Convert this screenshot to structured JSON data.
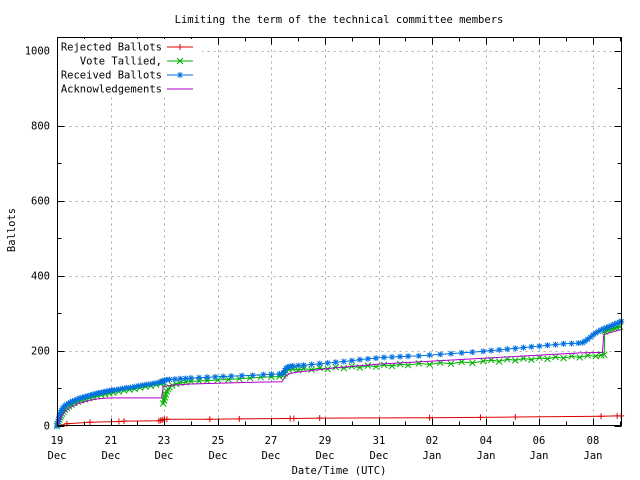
{
  "chart_data": {
    "type": "line",
    "title": "Limiting the term of the technical committee members",
    "xlabel": "Date/Time (UTC)",
    "ylabel": "Ballots",
    "x_unit": "days since 19 Dec 00:00 UTC",
    "xlim": [
      0,
      21.08
    ],
    "ylim": [
      0,
      1037
    ],
    "grid": true,
    "grid_color": "#aaaaaa",
    "frame_color": "#000000",
    "background_color": "#ffffff",
    "legend_position": "top-left-inside",
    "yticks": [
      0,
      200,
      400,
      600,
      800,
      1000
    ],
    "ytick_minor_step": 100,
    "xticks": [
      {
        "t": 0,
        "day": "19",
        "mon": "Dec"
      },
      {
        "t": 2,
        "day": "21",
        "mon": "Dec"
      },
      {
        "t": 4,
        "day": "23",
        "mon": "Dec"
      },
      {
        "t": 6,
        "day": "25",
        "mon": "Dec"
      },
      {
        "t": 8,
        "day": "27",
        "mon": "Dec"
      },
      {
        "t": 10,
        "day": "29",
        "mon": "Dec"
      },
      {
        "t": 12,
        "day": "31",
        "mon": "Dec"
      },
      {
        "t": 14,
        "day": "02",
        "mon": "Jan"
      },
      {
        "t": 16,
        "day": "04",
        "mon": "Jan"
      },
      {
        "t": 18,
        "day": "06",
        "mon": "Jan"
      },
      {
        "t": 20,
        "day": "08",
        "mon": "Jan"
      }
    ],
    "series": [
      {
        "name": "Rejected Ballots",
        "color": "#dd0000",
        "marker": "plus",
        "points": [
          [
            0,
            0
          ],
          [
            0.37,
            6
          ],
          [
            1.23,
            10
          ],
          [
            2.31,
            12
          ],
          [
            2.5,
            13
          ],
          [
            3.8,
            14
          ],
          [
            3.87,
            15
          ],
          [
            3.93,
            16
          ],
          [
            4,
            18
          ],
          [
            4.1,
            18
          ],
          [
            5.7,
            18
          ],
          [
            6.8,
            19
          ],
          [
            8.7,
            20
          ],
          [
            8.84,
            20
          ],
          [
            9.8,
            21
          ],
          [
            13.9,
            22
          ],
          [
            15.8,
            23
          ],
          [
            17.1,
            24
          ],
          [
            20.3,
            26
          ],
          [
            20.9,
            27
          ],
          [
            21.05,
            27
          ]
        ]
      },
      {
        "name": "Vote Tallied,",
        "color": "#00b000",
        "marker": "x",
        "points": [
          [
            0,
            0
          ],
          [
            0.03,
            5
          ],
          [
            0.06,
            11
          ],
          [
            0.09,
            17
          ],
          [
            0.12,
            23
          ],
          [
            0.15,
            28
          ],
          [
            0.19,
            33
          ],
          [
            0.24,
            38
          ],
          [
            0.3,
            43
          ],
          [
            0.37,
            48
          ],
          [
            0.45,
            53
          ],
          [
            0.55,
            57
          ],
          [
            0.65,
            61
          ],
          [
            0.78,
            65
          ],
          [
            0.9,
            68
          ],
          [
            1.05,
            71
          ],
          [
            1.2,
            74
          ],
          [
            1.35,
            77
          ],
          [
            1.5,
            80
          ],
          [
            1.65,
            83
          ],
          [
            1.8,
            85
          ],
          [
            1.95,
            87
          ],
          [
            2.1,
            89
          ],
          [
            2.3,
            92
          ],
          [
            2.5,
            95
          ],
          [
            2.7,
            97
          ],
          [
            2.9,
            99
          ],
          [
            3.1,
            102
          ],
          [
            3.3,
            105
          ],
          [
            3.5,
            107
          ],
          [
            3.7,
            110
          ],
          [
            3.85,
            113
          ],
          [
            3.93,
            116
          ],
          [
            3.95,
            118
          ],
          [
            3.96,
            60
          ],
          [
            4,
            68
          ],
          [
            4.03,
            76
          ],
          [
            4.06,
            84
          ],
          [
            4.1,
            92
          ],
          [
            4.15,
            98
          ],
          [
            4.2,
            103
          ],
          [
            4.3,
            108
          ],
          [
            4.45,
            112
          ],
          [
            4.6,
            115
          ],
          [
            4.8,
            117
          ],
          [
            5,
            119
          ],
          [
            5.3,
            120
          ],
          [
            5.6,
            121
          ],
          [
            6,
            123
          ],
          [
            6.4,
            124
          ],
          [
            6.8,
            126
          ],
          [
            7.2,
            128
          ],
          [
            7.6,
            130
          ],
          [
            8,
            131
          ],
          [
            8.3,
            132
          ],
          [
            8.45,
            134
          ],
          [
            8.5,
            140
          ],
          [
            8.55,
            146
          ],
          [
            8.65,
            150
          ],
          [
            8.8,
            152
          ],
          [
            9,
            149
          ],
          [
            9.2,
            153
          ],
          [
            9.5,
            150
          ],
          [
            9.8,
            155
          ],
          [
            10.1,
            152
          ],
          [
            10.4,
            157
          ],
          [
            10.7,
            154
          ],
          [
            11,
            159
          ],
          [
            11.3,
            156
          ],
          [
            11.6,
            161
          ],
          [
            11.9,
            158
          ],
          [
            12.2,
            163
          ],
          [
            12.5,
            160
          ],
          [
            12.8,
            165
          ],
          [
            13.1,
            162
          ],
          [
            13.5,
            167
          ],
          [
            13.9,
            164
          ],
          [
            14.3,
            169
          ],
          [
            14.7,
            166
          ],
          [
            15.1,
            171
          ],
          [
            15.5,
            168
          ],
          [
            15.9,
            173
          ],
          [
            16.2,
            176
          ],
          [
            16.5,
            172
          ],
          [
            16.8,
            178
          ],
          [
            17.1,
            175
          ],
          [
            17.4,
            180
          ],
          [
            17.7,
            177
          ],
          [
            18,
            182
          ],
          [
            18.3,
            179
          ],
          [
            18.6,
            184
          ],
          [
            18.9,
            181
          ],
          [
            19.2,
            186
          ],
          [
            19.5,
            183
          ],
          [
            19.8,
            188
          ],
          [
            20.1,
            186
          ],
          [
            20.3,
            189
          ],
          [
            20.42,
            190
          ],
          [
            20.43,
            252
          ],
          [
            20.5,
            255
          ],
          [
            20.6,
            257
          ],
          [
            20.7,
            259
          ],
          [
            20.8,
            261
          ],
          [
            20.9,
            263
          ],
          [
            21,
            265
          ]
        ]
      },
      {
        "name": "Received Ballots",
        "color": "#0070e0",
        "marker": "star",
        "points": [
          [
            0,
            0
          ],
          [
            0.02,
            6
          ],
          [
            0.04,
            12
          ],
          [
            0.06,
            18
          ],
          [
            0.08,
            24
          ],
          [
            0.1,
            30
          ],
          [
            0.13,
            36
          ],
          [
            0.16,
            41
          ],
          [
            0.2,
            46
          ],
          [
            0.25,
            50
          ],
          [
            0.3,
            54
          ],
          [
            0.36,
            57
          ],
          [
            0.42,
            60
          ],
          [
            0.5,
            63
          ],
          [
            0.58,
            66
          ],
          [
            0.66,
            68
          ],
          [
            0.75,
            71
          ],
          [
            0.85,
            74
          ],
          [
            0.95,
            76
          ],
          [
            1.05,
            78
          ],
          [
            1.15,
            80
          ],
          [
            1.25,
            82
          ],
          [
            1.35,
            84
          ],
          [
            1.45,
            86
          ],
          [
            1.55,
            88
          ],
          [
            1.65,
            89
          ],
          [
            1.75,
            91
          ],
          [
            1.85,
            92
          ],
          [
            1.95,
            94
          ],
          [
            2.05,
            95
          ],
          [
            2.15,
            96
          ],
          [
            2.3,
            98
          ],
          [
            2.45,
            100
          ],
          [
            2.6,
            102
          ],
          [
            2.75,
            103
          ],
          [
            2.9,
            105
          ],
          [
            3.05,
            107
          ],
          [
            3.2,
            109
          ],
          [
            3.35,
            111
          ],
          [
            3.5,
            112
          ],
          [
            3.65,
            114
          ],
          [
            3.8,
            116
          ],
          [
            3.92,
            118
          ],
          [
            3.97,
            120
          ],
          [
            4.02,
            122
          ],
          [
            4.08,
            123
          ],
          [
            4.2,
            124
          ],
          [
            4.4,
            125
          ],
          [
            4.6,
            126
          ],
          [
            4.8,
            127
          ],
          [
            5,
            128
          ],
          [
            5.3,
            129
          ],
          [
            5.6,
            130
          ],
          [
            5.9,
            131
          ],
          [
            6.2,
            132
          ],
          [
            6.5,
            133
          ],
          [
            6.9,
            134
          ],
          [
            7.3,
            135
          ],
          [
            7.7,
            137
          ],
          [
            8,
            138
          ],
          [
            8.3,
            139
          ],
          [
            8.45,
            141
          ],
          [
            8.5,
            148
          ],
          [
            8.55,
            154
          ],
          [
            8.6,
            157
          ],
          [
            8.7,
            159
          ],
          [
            8.8,
            160
          ],
          [
            9,
            161
          ],
          [
            9.2,
            162
          ],
          [
            9.5,
            164
          ],
          [
            9.8,
            166
          ],
          [
            10.1,
            168
          ],
          [
            10.4,
            170
          ],
          [
            10.7,
            172
          ],
          [
            11,
            174
          ],
          [
            11.3,
            177
          ],
          [
            11.6,
            179
          ],
          [
            11.9,
            181
          ],
          [
            12.2,
            183
          ],
          [
            12.5,
            184
          ],
          [
            12.8,
            185
          ],
          [
            13.1,
            186
          ],
          [
            13.5,
            187
          ],
          [
            13.9,
            189
          ],
          [
            14.3,
            191
          ],
          [
            14.7,
            193
          ],
          [
            15.1,
            195
          ],
          [
            15.5,
            197
          ],
          [
            15.9,
            199
          ],
          [
            16.2,
            201
          ],
          [
            16.5,
            203
          ],
          [
            16.8,
            205
          ],
          [
            17.1,
            207
          ],
          [
            17.4,
            209
          ],
          [
            17.7,
            211
          ],
          [
            18,
            213
          ],
          [
            18.3,
            215
          ],
          [
            18.6,
            217
          ],
          [
            18.9,
            219
          ],
          [
            19.2,
            220
          ],
          [
            19.45,
            221
          ],
          [
            19.6,
            222
          ],
          [
            19.7,
            226
          ],
          [
            19.8,
            231
          ],
          [
            19.9,
            237
          ],
          [
            20,
            243
          ],
          [
            20.1,
            248
          ],
          [
            20.2,
            252
          ],
          [
            20.3,
            256
          ],
          [
            20.4,
            259
          ],
          [
            20.5,
            262
          ],
          [
            20.6,
            265
          ],
          [
            20.7,
            268
          ],
          [
            20.8,
            271
          ],
          [
            20.9,
            274
          ],
          [
            21,
            277
          ],
          [
            21.05,
            279
          ]
        ]
      },
      {
        "name": "Acknowledgements",
        "color": "#b000d0",
        "marker": "none",
        "points": [
          [
            0,
            0
          ],
          [
            0.05,
            8
          ],
          [
            0.1,
            16
          ],
          [
            0.15,
            24
          ],
          [
            0.2,
            30
          ],
          [
            0.3,
            38
          ],
          [
            0.4,
            44
          ],
          [
            0.5,
            49
          ],
          [
            0.65,
            55
          ],
          [
            0.8,
            60
          ],
          [
            1,
            64
          ],
          [
            1.2,
            68
          ],
          [
            1.4,
            71
          ],
          [
            1.6,
            73
          ],
          [
            1.8,
            74
          ],
          [
            2,
            75
          ],
          [
            3.9,
            75
          ],
          [
            3.97,
            105
          ],
          [
            4.1,
            107
          ],
          [
            4.3,
            109
          ],
          [
            4.6,
            110
          ],
          [
            5,
            112
          ],
          [
            5.5,
            113
          ],
          [
            6,
            114
          ],
          [
            6.5,
            115
          ],
          [
            7,
            116
          ],
          [
            7.5,
            117
          ],
          [
            8.4,
            118
          ],
          [
            8.5,
            130
          ],
          [
            8.55,
            135
          ],
          [
            8.7,
            140
          ],
          [
            9,
            144
          ],
          [
            9.5,
            148
          ],
          [
            10,
            152
          ],
          [
            10.5,
            156
          ],
          [
            11,
            159
          ],
          [
            11.5,
            162
          ],
          [
            12,
            165
          ],
          [
            12.5,
            167
          ],
          [
            13,
            169
          ],
          [
            13.5,
            171
          ],
          [
            14,
            173
          ],
          [
            14.5,
            175
          ],
          [
            15,
            177
          ],
          [
            15.5,
            179
          ],
          [
            16,
            181
          ],
          [
            16.5,
            183
          ],
          [
            17,
            185
          ],
          [
            17.5,
            187
          ],
          [
            18,
            189
          ],
          [
            18.5,
            191
          ],
          [
            19,
            193
          ],
          [
            19.5,
            195
          ],
          [
            20,
            196
          ],
          [
            20.35,
            196
          ],
          [
            20.4,
            243
          ],
          [
            20.5,
            246
          ],
          [
            20.7,
            250
          ],
          [
            20.9,
            254
          ],
          [
            21.05,
            257
          ]
        ]
      }
    ]
  }
}
